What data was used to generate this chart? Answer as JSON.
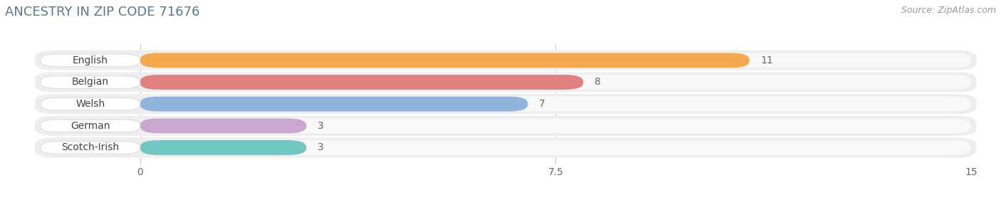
{
  "title": "ANCESTRY IN ZIP CODE 71676",
  "source": "Source: ZipAtlas.com",
  "categories": [
    "English",
    "Belgian",
    "Welsh",
    "German",
    "Scotch-Irish"
  ],
  "values": [
    11,
    8,
    7,
    3,
    3
  ],
  "bar_colors": [
    "#F5A94E",
    "#E08080",
    "#91B4DC",
    "#C8A8CC",
    "#72C8C0"
  ],
  "xlim": [
    0,
    15
  ],
  "xticks": [
    0,
    7.5,
    15
  ],
  "background_color": "#ffffff",
  "bar_height": 0.68,
  "row_bg_color": "#eeeeee",
  "bar_bg_color": "#f8f8f8",
  "title_color": "#5a7a8a",
  "source_color": "#999999",
  "label_fontsize": 10,
  "value_fontsize": 10,
  "title_fontsize": 13
}
